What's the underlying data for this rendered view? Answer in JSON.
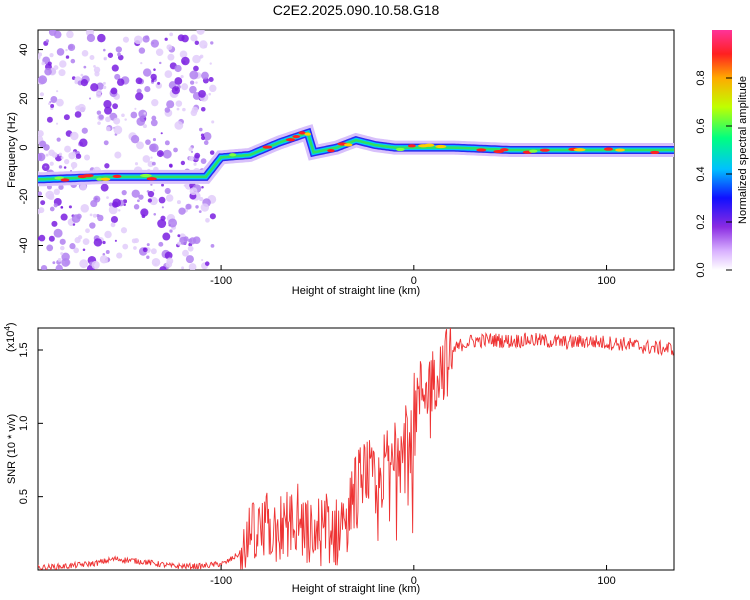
{
  "title": "C2E2.2025.090.10.58.G18",
  "chart_data": [
    {
      "type": "heatmap",
      "xlabel": "Height of straight line (km)",
      "ylabel": "Frequency (Hz)",
      "xlim": [
        -195,
        135
      ],
      "ylim": [
        -50,
        48
      ],
      "xticks": [
        -100,
        0,
        100
      ],
      "yticks": [
        -40,
        -20,
        0,
        20,
        40
      ],
      "colorbar": {
        "label": "Normalized spectral amplitude",
        "range": [
          0,
          1
        ],
        "ticks": [
          0.0,
          0.2,
          0.4,
          0.6,
          0.8
        ]
      },
      "ridge": {
        "x": [
          -195,
          -160,
          -120,
          -108,
          -100,
          -85,
          -70,
          -55,
          -52,
          -40,
          -30,
          -20,
          -10,
          0,
          20,
          50,
          100,
          135
        ],
        "y": [
          -13,
          -12,
          -12,
          -12,
          -4,
          -3,
          2,
          6,
          -2,
          0,
          3,
          1,
          0,
          0,
          0,
          -1,
          -1,
          -1
        ]
      }
    },
    {
      "type": "line",
      "xlabel": "Height of straight line (km)",
      "ylabel": "SNR (10 * v/v)",
      "y_multiplier_label": "(x10",
      "y_multiplier_exp": "4",
      "xlim": [
        -195,
        135
      ],
      "ylim": [
        0,
        1.65
      ],
      "xticks": [
        -100,
        0,
        100
      ],
      "yticks": [
        0.5,
        1.0,
        1.5
      ],
      "ytick_labels": [
        "0.5",
        "1.0",
        "1.5"
      ],
      "color": "#ee3333",
      "series": [
        {
          "x": [
            -195,
            -180,
            -165,
            -155,
            -140,
            -125,
            -110,
            -98,
            -90,
            -85,
            -80,
            -75,
            -70,
            -65,
            -60,
            -55,
            -50,
            -45,
            -40,
            -35,
            -30,
            -25,
            -20,
            -15,
            -10,
            -5,
            0,
            5,
            10,
            15,
            20,
            25,
            30,
            40,
            50,
            60,
            70,
            80,
            90,
            100,
            110,
            120,
            130,
            135
          ],
          "y": [
            0.02,
            0.03,
            0.05,
            0.08,
            0.06,
            0.03,
            0.03,
            0.05,
            0.12,
            0.25,
            0.3,
            0.35,
            0.32,
            0.38,
            0.4,
            0.3,
            0.3,
            0.35,
            0.3,
            0.45,
            0.6,
            0.75,
            0.6,
            0.75,
            0.9,
            1.05,
            1.15,
            1.3,
            1.35,
            1.45,
            1.5,
            1.55,
            1.57,
            1.58,
            1.57,
            1.58,
            1.57,
            1.56,
            1.57,
            1.56,
            1.55,
            1.53,
            1.52,
            1.52
          ]
        }
      ]
    }
  ]
}
